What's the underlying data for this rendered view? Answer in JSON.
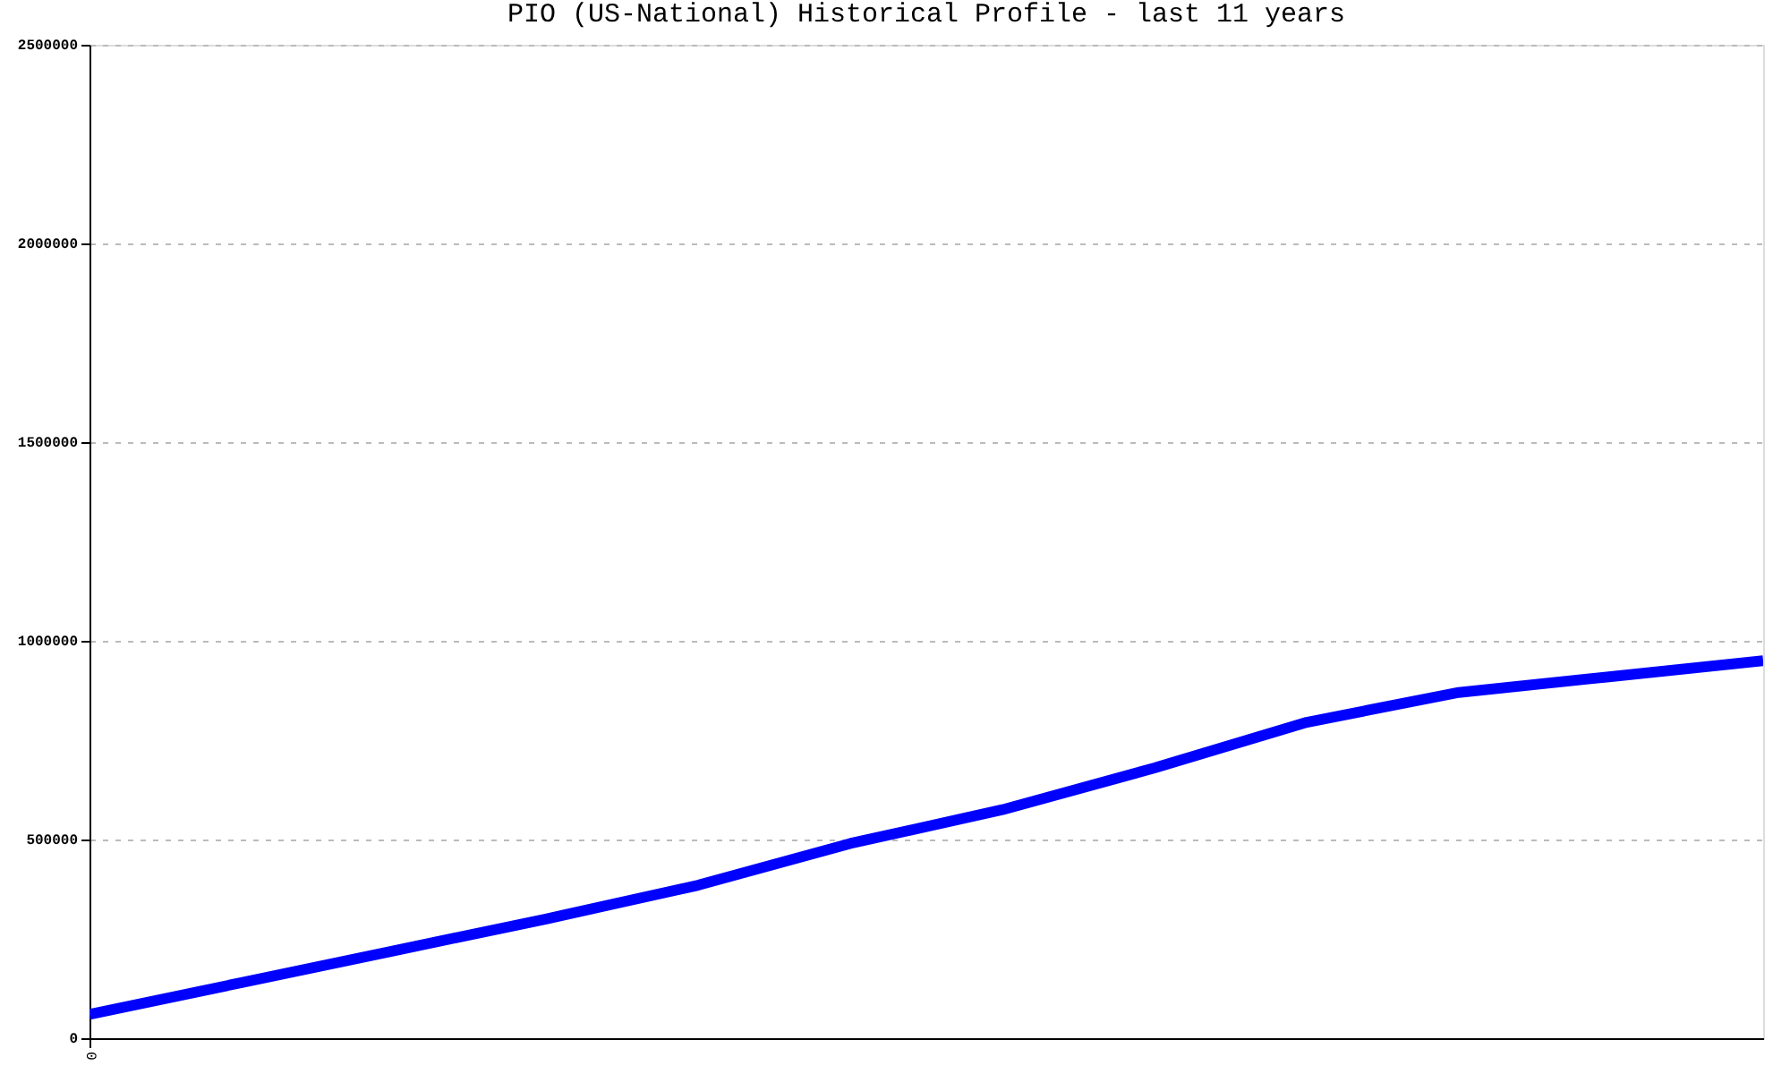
{
  "chart_data": {
    "type": "line",
    "title": "PIO (US-National) Historical Profile - last 11 years",
    "categories": [
      "0",
      null,
      null,
      null,
      null,
      null,
      null,
      null,
      null,
      null,
      null,
      null
    ],
    "series": [
      {
        "color": "#0000ff",
        "values": [
          60000,
          140000,
          220000,
          300000,
          385000,
          490000,
          575000,
          680000,
          795000,
          870000,
          910000,
          950000
        ]
      }
    ],
    "ylim": [
      0,
      2500000
    ],
    "yticks": [
      0,
      500000,
      1000000,
      1500000,
      2000000,
      2500000
    ],
    "grid": "y",
    "marker": "none",
    "line_style": "solid"
  }
}
